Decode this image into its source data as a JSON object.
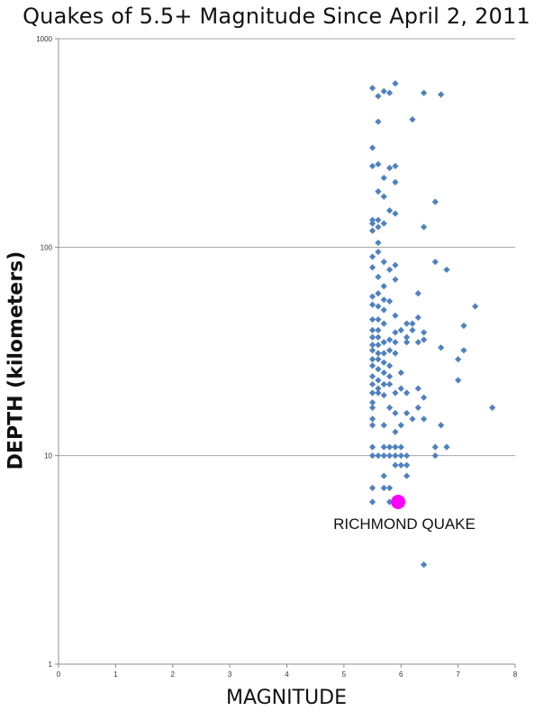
{
  "chart_data": {
    "type": "scatter",
    "title": "Quakes of 5.5+ Magnitude Since April 2, 2011",
    "xlabel": "MAGNITUDE",
    "ylabel": "DEPTH (kilometers)",
    "x_ticks": [
      "0",
      "1",
      "2",
      "3",
      "4",
      "5",
      "6",
      "7",
      "8"
    ],
    "y_ticks": [
      "1",
      "10",
      "100",
      "1000"
    ],
    "xlim": [
      0,
      8
    ],
    "ylim": [
      1,
      1000
    ],
    "y_scale": "log",
    "grid": "horizontal",
    "marker_color": "#4f81bd",
    "highlight_color": "#ff00ff",
    "series": [
      {
        "points": [
          [
            5.5,
            580
          ],
          [
            5.6,
            530
          ],
          [
            5.7,
            560
          ],
          [
            5.8,
            550
          ],
          [
            5.9,
            610
          ],
          [
            6.4,
            550
          ],
          [
            6.7,
            540
          ],
          [
            5.6,
            400
          ],
          [
            6.2,
            410
          ],
          [
            5.5,
            300
          ],
          [
            5.5,
            245
          ],
          [
            5.6,
            250
          ],
          [
            5.8,
            240
          ],
          [
            5.9,
            245
          ],
          [
            5.7,
            215
          ],
          [
            5.9,
            205
          ],
          [
            5.6,
            185
          ],
          [
            5.7,
            175
          ],
          [
            6.6,
            165
          ],
          [
            5.8,
            150
          ],
          [
            5.9,
            145
          ],
          [
            5.5,
            135
          ],
          [
            5.5,
            130
          ],
          [
            5.6,
            135
          ],
          [
            5.7,
            130
          ],
          [
            5.6,
            125
          ],
          [
            5.5,
            120
          ],
          [
            6.4,
            125
          ],
          [
            5.6,
            105
          ],
          [
            5.6,
            95
          ],
          [
            5.5,
            90
          ],
          [
            5.7,
            85
          ],
          [
            5.8,
            78
          ],
          [
            5.5,
            80
          ],
          [
            5.9,
            82
          ],
          [
            6.6,
            85
          ],
          [
            6.8,
            78
          ],
          [
            5.9,
            70
          ],
          [
            5.6,
            72
          ],
          [
            5.7,
            65
          ],
          [
            5.6,
            60
          ],
          [
            5.5,
            58
          ],
          [
            5.7,
            56
          ],
          [
            5.8,
            55
          ],
          [
            5.5,
            53
          ],
          [
            5.6,
            52
          ],
          [
            5.7,
            50
          ],
          [
            6.3,
            60
          ],
          [
            7.3,
            52
          ],
          [
            5.9,
            47
          ],
          [
            5.6,
            45
          ],
          [
            5.5,
            45
          ],
          [
            5.7,
            43
          ],
          [
            6.1,
            43
          ],
          [
            6.2,
            43
          ],
          [
            6.3,
            46
          ],
          [
            5.5,
            40
          ],
          [
            5.6,
            40
          ],
          [
            5.9,
            39
          ],
          [
            6.0,
            40
          ],
          [
            6.2,
            40
          ],
          [
            6.4,
            39
          ],
          [
            5.5,
            37
          ],
          [
            5.6,
            37
          ],
          [
            5.7,
            35
          ],
          [
            5.8,
            36
          ],
          [
            6.1,
            37
          ],
          [
            6.4,
            36
          ],
          [
            7.1,
            42
          ],
          [
            5.5,
            34
          ],
          [
            5.6,
            34
          ],
          [
            5.7,
            35
          ],
          [
            5.9,
            35
          ],
          [
            6.1,
            35
          ],
          [
            6.3,
            35
          ],
          [
            5.5,
            32
          ],
          [
            5.6,
            31
          ],
          [
            5.7,
            31
          ],
          [
            5.8,
            32
          ],
          [
            5.9,
            31
          ],
          [
            6.7,
            33
          ],
          [
            7.1,
            32
          ],
          [
            5.5,
            29
          ],
          [
            5.6,
            29
          ],
          [
            5.7,
            28
          ],
          [
            5.8,
            27
          ],
          [
            5.5,
            27
          ],
          [
            5.6,
            26
          ],
          [
            7.0,
            29
          ],
          [
            5.7,
            25
          ],
          [
            5.8,
            24
          ],
          [
            6.0,
            25
          ],
          [
            5.5,
            24
          ],
          [
            5.6,
            23
          ],
          [
            7.0,
            23
          ],
          [
            5.7,
            22
          ],
          [
            5.5,
            22
          ],
          [
            5.6,
            21
          ],
          [
            5.8,
            22
          ],
          [
            6.0,
            21
          ],
          [
            6.3,
            21
          ],
          [
            5.5,
            20
          ],
          [
            5.6,
            20
          ],
          [
            5.7,
            19.5
          ],
          [
            5.9,
            20
          ],
          [
            6.1,
            20
          ],
          [
            6.4,
            19
          ],
          [
            5.5,
            18
          ],
          [
            5.5,
            17
          ],
          [
            5.8,
            17
          ],
          [
            6.3,
            17
          ],
          [
            7.6,
            17
          ],
          [
            5.9,
            16
          ],
          [
            6.1,
            16
          ],
          [
            6.2,
            15
          ],
          [
            6.4,
            15
          ],
          [
            5.5,
            15
          ],
          [
            5.7,
            14
          ],
          [
            5.5,
            14
          ],
          [
            6.0,
            14
          ],
          [
            6.7,
            14
          ],
          [
            5.9,
            13
          ],
          [
            5.5,
            11
          ],
          [
            5.7,
            11
          ],
          [
            5.8,
            11
          ],
          [
            5.9,
            11
          ],
          [
            6.0,
            11
          ],
          [
            6.6,
            11
          ],
          [
            6.8,
            11
          ],
          [
            5.5,
            10
          ],
          [
            5.6,
            10
          ],
          [
            5.7,
            10
          ],
          [
            5.8,
            10
          ],
          [
            5.9,
            10
          ],
          [
            6.0,
            10
          ],
          [
            6.1,
            10
          ],
          [
            6.6,
            10
          ],
          [
            5.9,
            9
          ],
          [
            6.0,
            9
          ],
          [
            6.1,
            9
          ],
          [
            6.1,
            8
          ],
          [
            5.7,
            8
          ],
          [
            5.5,
            7
          ],
          [
            5.7,
            7
          ],
          [
            5.8,
            7
          ],
          [
            5.5,
            6
          ],
          [
            5.8,
            6
          ],
          [
            6.4,
            3
          ]
        ]
      }
    ],
    "highlight": {
      "x": 5.95,
      "y": 6,
      "label": "RICHMOND QUAKE"
    }
  }
}
